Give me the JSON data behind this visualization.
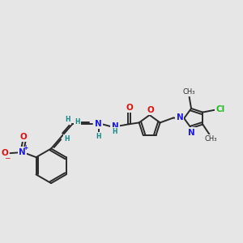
{
  "bg_color": "#e6e6e6",
  "bond_color": "#2a2a2a",
  "bond_lw": 1.4,
  "dbo": 0.06,
  "atom_colors": {
    "N": "#1a1aee",
    "O": "#dd1111",
    "Cl": "#22bb22",
    "H": "#118888",
    "C": "#2a2a2a"
  },
  "fs": 7.0,
  "fss": 5.5,
  "fsm": 6.0
}
